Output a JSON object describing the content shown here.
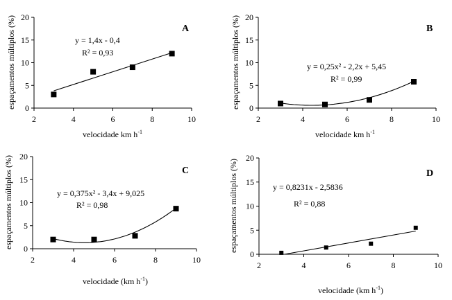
{
  "chart_data": [
    {
      "type": "scatter",
      "panel_letter": "A",
      "xlabel": "velocidade km h",
      "xlabel_sup": "-1",
      "ylabel": "espaçamentos múltiplos (%)",
      "xlim": [
        2,
        10
      ],
      "ylim": [
        0,
        20
      ],
      "xticks": [
        2,
        4,
        6,
        8,
        10
      ],
      "yticks": [
        0,
        5,
        10,
        15,
        20
      ],
      "points": [
        {
          "x": 3,
          "y": 3
        },
        {
          "x": 5,
          "y": 8
        },
        {
          "x": 7,
          "y": 9
        },
        {
          "x": 9,
          "y": 12
        }
      ],
      "fit": {
        "kind": "linear",
        "a": 0,
        "b": 1.4,
        "c": -0.4
      },
      "equation": "y = 1,4x - 0,4",
      "r2": "R² = 0,93",
      "grid": false
    },
    {
      "type": "scatter",
      "panel_letter": "B",
      "xlabel": "velocidade km h",
      "xlabel_sup": "-1",
      "ylabel": "espaçamentos múltiplos (%)",
      "xlim": [
        2,
        10
      ],
      "ylim": [
        0,
        20
      ],
      "xticks": [
        2,
        4,
        6,
        8,
        10
      ],
      "yticks": [
        0,
        5,
        10,
        15,
        20
      ],
      "points": [
        {
          "x": 3,
          "y": 1
        },
        {
          "x": 5,
          "y": 0.8
        },
        {
          "x": 7,
          "y": 1.8
        },
        {
          "x": 9,
          "y": 5.8
        }
      ],
      "fit": {
        "kind": "quadratic",
        "a": 0.25,
        "b": -2.2,
        "c": 5.45
      },
      "equation": "y = 0,25x² - 2,2x + 5,45",
      "r2": "R² = 0,99",
      "grid": false
    },
    {
      "type": "scatter",
      "panel_letter": "C",
      "xlabel": "velocidade (km h",
      "xlabel_sup": "-1",
      "xlabel_tail": ")",
      "ylabel": "espaçamentos múltiplos (%)",
      "xlim": [
        2,
        10
      ],
      "ylim": [
        0,
        20
      ],
      "xticks": [
        2,
        4,
        6,
        8,
        10
      ],
      "yticks": [
        0,
        5,
        10,
        15,
        20
      ],
      "points": [
        {
          "x": 3,
          "y": 2
        },
        {
          "x": 5,
          "y": 2
        },
        {
          "x": 7,
          "y": 2.8
        },
        {
          "x": 9,
          "y": 8.7
        }
      ],
      "fit": {
        "kind": "quadratic",
        "a": 0.375,
        "b": -3.4,
        "c": 9.025
      },
      "equation": "y = 0,375x² - 3,4x + 9,025",
      "r2": "R² = 0,98",
      "grid": false
    },
    {
      "type": "scatter",
      "panel_letter": "D",
      "xlabel": "velocidade (km h",
      "xlabel_sup": "-1",
      "xlabel_tail": ")",
      "ylabel": "espaçamentos múltiplos (%)",
      "xlim": [
        2,
        10
      ],
      "ylim": [
        0,
        20
      ],
      "xticks": [
        2,
        4,
        6,
        8,
        10
      ],
      "yticks": [
        0,
        5,
        10,
        15,
        20
      ],
      "points": [
        {
          "x": 3,
          "y": 0.3
        },
        {
          "x": 5,
          "y": 1.4
        },
        {
          "x": 7,
          "y": 2.2
        },
        {
          "x": 9,
          "y": 5.5
        }
      ],
      "fit": {
        "kind": "linear",
        "a": 0,
        "b": 0.8231,
        "c": -2.5836
      },
      "equation": "y = 0,8231x - 2,5836",
      "r2": "R² = 0,88",
      "grid": false
    }
  ]
}
